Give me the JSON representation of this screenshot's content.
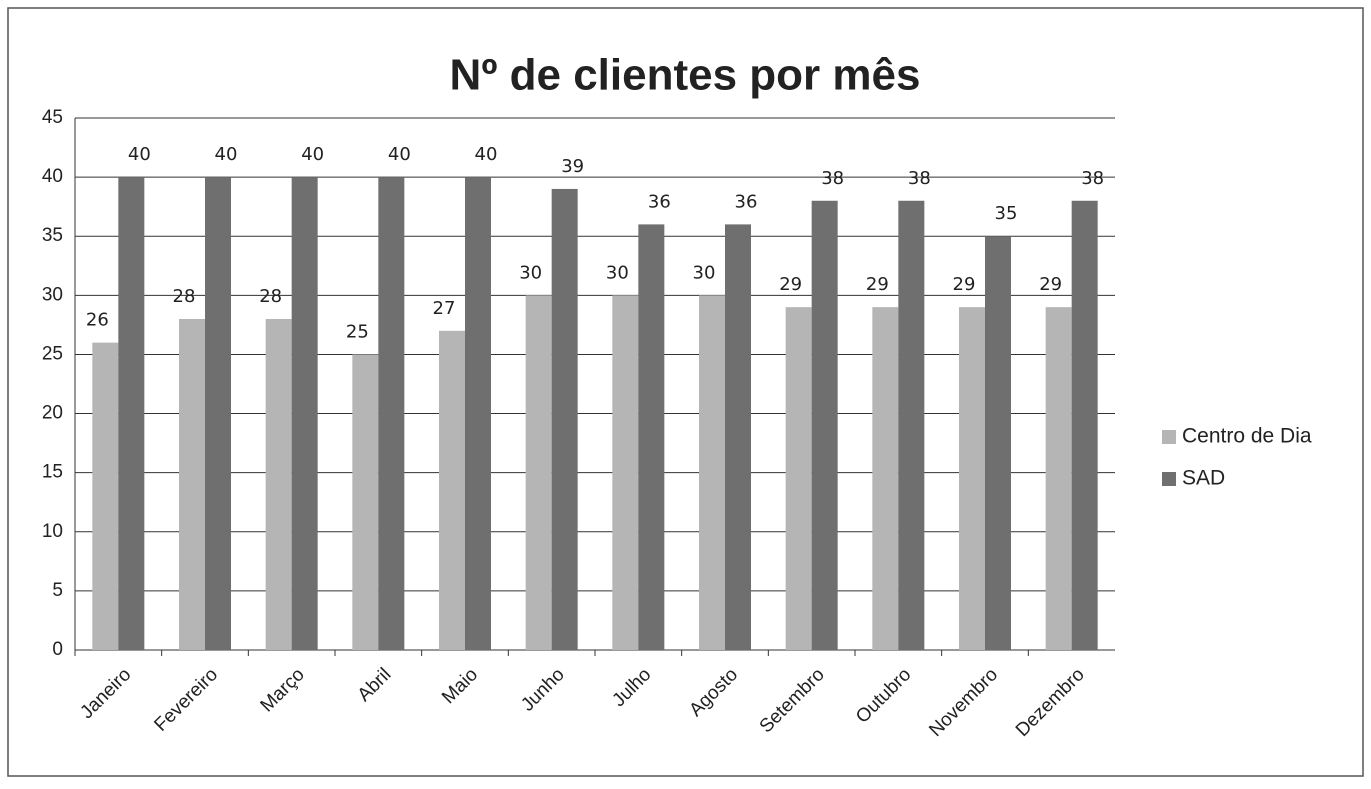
{
  "chart_data": {
    "type": "bar",
    "title": "Nº de clientes por mês",
    "categories": [
      "Janeiro",
      "Fevereiro",
      "Março",
      "Abril",
      "Maio",
      "Junho",
      "Julho",
      "Agosto",
      "Setembro",
      "Outubro",
      "Novembro",
      "Dezembro"
    ],
    "series": [
      {
        "name": "Centro de Dia",
        "color": "#b5b5b5",
        "values": [
          26,
          28,
          28,
          25,
          27,
          30,
          30,
          30,
          29,
          29,
          29,
          29
        ]
      },
      {
        "name": "SAD",
        "color": "#6f6f6f",
        "values": [
          40,
          40,
          40,
          40,
          40,
          39,
          36,
          36,
          38,
          38,
          35,
          38
        ]
      }
    ],
    "ylim": [
      0,
      45
    ],
    "yticks": [
      0,
      5,
      10,
      15,
      20,
      25,
      30,
      35,
      40,
      45
    ],
    "grid": true,
    "legend": "right"
  }
}
